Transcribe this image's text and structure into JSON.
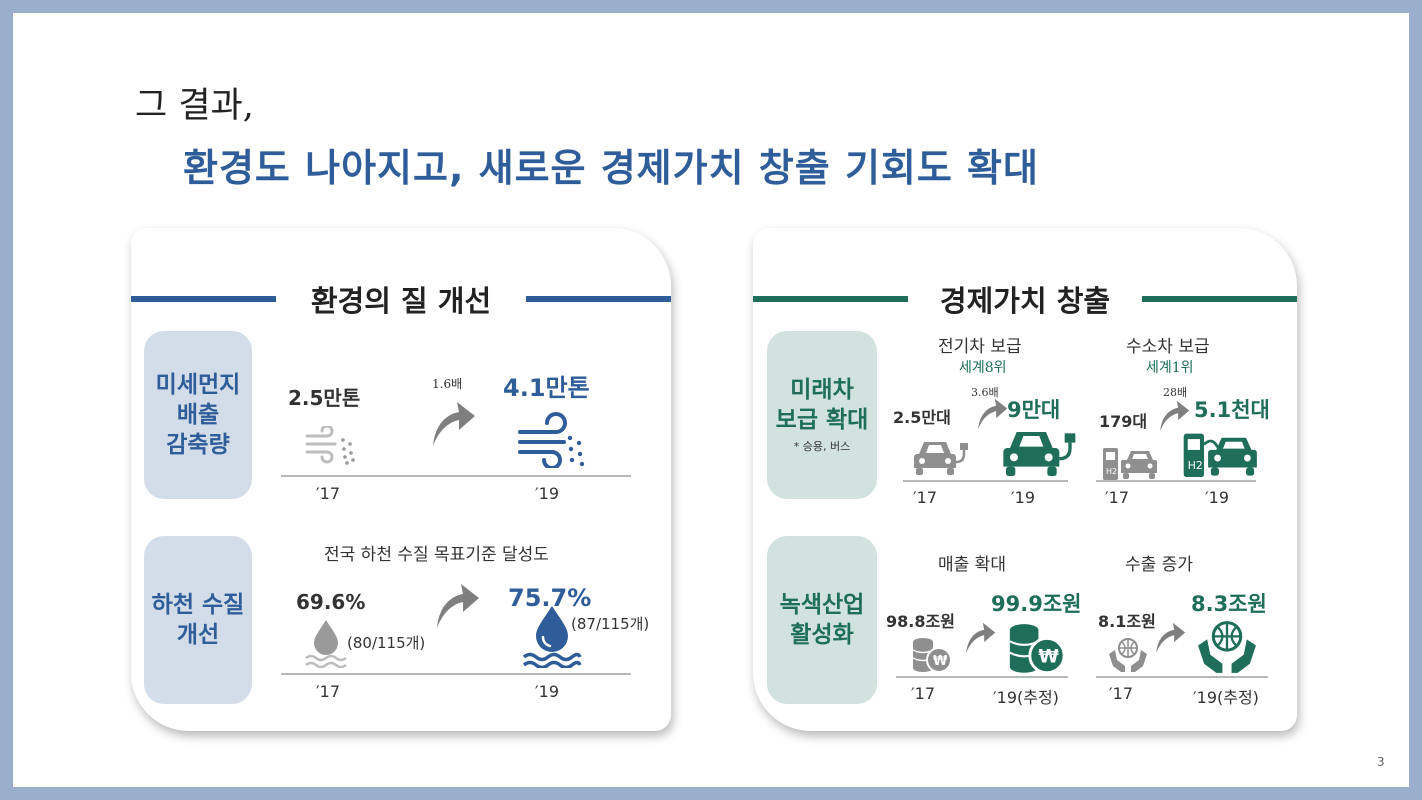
{
  "header": {
    "pre_title": "그 결과,",
    "title": "환경도 나아지고, 새로운 경제가치 창출 기회도 확대"
  },
  "left_panel": {
    "heading": "환경의 질 개선",
    "dust": {
      "tag": [
        "미세먼지",
        "배출",
        "감축량"
      ],
      "value_2017": "2.5만톤",
      "multiplier": "1.6배",
      "value_2019": "4.1만톤",
      "year_2017": "′17",
      "year_2019": "′19"
    },
    "water": {
      "tag": [
        "하천 수질",
        "개선"
      ],
      "caption": "전국 하천 수질 목표기준 달성도",
      "value_2017": "69.6%",
      "detail_2017": "(80/115개)",
      "value_2019": "75.7%",
      "detail_2019": "(87/115개)",
      "year_2017": "′17",
      "year_2019": "′19"
    }
  },
  "right_panel": {
    "heading": "경제가치 창출",
    "future_car": {
      "tag": [
        "미래차",
        "보급 확대"
      ],
      "note": "* 승용, 버스",
      "ev": {
        "label": "전기차 보급",
        "rank": "세계8위",
        "value_2017": "2.5만대",
        "multiplier": "3.6배",
        "value_2019": "9만대",
        "year_2017": "′17",
        "year_2019": "′19"
      },
      "hydrogen": {
        "label": "수소차 보급",
        "rank": "세계1위",
        "value_2017": "179대",
        "multiplier": "28배",
        "value_2019": "5.1천대",
        "year_2017": "′17",
        "year_2019": "′19"
      }
    },
    "green_industry": {
      "tag": [
        "녹색산업",
        "활성화"
      ],
      "sales": {
        "label": "매출 확대",
        "value_2017": "98.8조원",
        "value_2019": "99.9조원",
        "year_2017": "′17",
        "year_2019": "′19(추정)"
      },
      "export": {
        "label": "수출 증가",
        "value_2017": "8.1조원",
        "value_2019": "8.3조원",
        "year_2017": "′17",
        "year_2019": "′19(추정)"
      }
    }
  },
  "page_number": "3",
  "colors": {
    "blue": "#2e5d99",
    "green": "#1e6e5a",
    "border": "#9aafcb"
  }
}
